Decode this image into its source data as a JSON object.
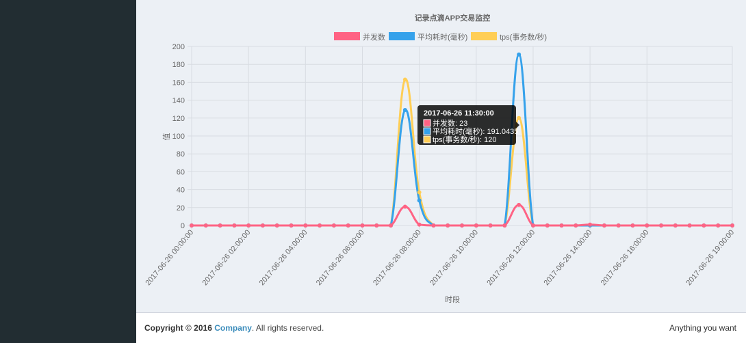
{
  "chart_data": {
    "type": "line",
    "title": "记录点滴APP交易监控",
    "xlabel": "时段",
    "ylabel": "值",
    "ylim": [
      0,
      200
    ],
    "yticks": [
      0,
      20,
      40,
      60,
      80,
      100,
      120,
      140,
      160,
      180,
      200
    ],
    "x_tick_labels": [
      "2017-06-26 00:00:00",
      "2017-06-26 02:00:00",
      "2017-06-26 04:00:00",
      "2017-06-26 06:00:00",
      "2017-06-26 08:00:00",
      "2017-06-26 10:00:00",
      "2017-06-26 12:00:00",
      "2017-06-26 14:00:00",
      "2017-06-26 16:00:00",
      "2017-06-26 19:00:00"
    ],
    "legend_position": "top",
    "grid": true,
    "series": [
      {
        "name": "并发数",
        "color": "#ff6384",
        "values": [
          0,
          0,
          0,
          0,
          0,
          0,
          0,
          0,
          0,
          0,
          0,
          0,
          0,
          0,
          0,
          21,
          1,
          0,
          0,
          0,
          0,
          0,
          0,
          23,
          0,
          0,
          0,
          0,
          1,
          0,
          0,
          0,
          0,
          0,
          0,
          0,
          0,
          0,
          0
        ]
      },
      {
        "name": "平均耗时(毫秒)",
        "color": "#36a2eb",
        "values": [
          0,
          0,
          0,
          0,
          0,
          0,
          0,
          0,
          0,
          0,
          0,
          0,
          0,
          0,
          0,
          129,
          28,
          0,
          0,
          0,
          0,
          0,
          0,
          191.0435,
          0,
          0,
          0,
          0,
          0,
          0,
          0,
          0,
          0,
          0,
          0,
          0,
          0,
          0,
          0
        ]
      },
      {
        "name": "tps(事务数/秒)",
        "color": "#ffce56",
        "values": [
          0,
          0,
          0,
          0,
          0,
          0,
          0,
          0,
          0,
          0,
          0,
          0,
          0,
          0,
          0,
          163,
          37,
          0,
          0,
          0,
          0,
          0,
          0,
          120,
          0,
          0,
          0,
          0,
          0,
          0,
          0,
          0,
          0,
          0,
          0,
          0,
          0,
          0,
          0
        ]
      }
    ],
    "tooltip": {
      "title": "2017-06-26 11:30:00",
      "lines": [
        "并发数: 23",
        "平均耗时(毫秒): 191.0435",
        "tps(事务数/秒): 120"
      ]
    }
  },
  "footer": {
    "copyright_prefix": "Copyright © 2016",
    "company": "Company",
    "rights": ". All rights reserved.",
    "right_text": "Anything you want"
  }
}
